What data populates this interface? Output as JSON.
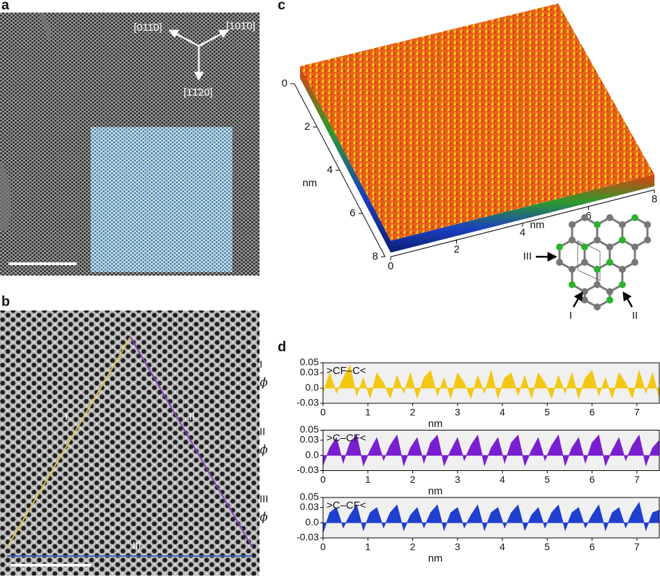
{
  "panels": {
    "a": {
      "label": "a",
      "directions": [
        "[011̄0]",
        "[101̄0]",
        "[1̄1̄20]"
      ]
    },
    "b": {
      "label": "b",
      "lines": [
        "I",
        "II",
        "III"
      ]
    },
    "c": {
      "label": "c",
      "depth_ticks": [
        0,
        2,
        4,
        6,
        8
      ],
      "depth_unit": "nm",
      "width_ticks": [
        0,
        2,
        4,
        6,
        8
      ],
      "width_unit": "nm",
      "sites": [
        "I",
        "II",
        "III"
      ]
    },
    "d": {
      "label": "d"
    }
  },
  "chart_data": [
    {
      "type": "area",
      "row_label": "I",
      "annotation": ">CF–C<",
      "ylabel": "ϕ",
      "xlabel": "nm",
      "color": "#f2c811",
      "x": [
        0,
        0.15,
        0.3,
        0.45,
        0.6,
        0.75,
        0.9,
        1.05,
        1.2,
        1.35,
        1.5,
        1.65,
        1.8,
        1.95,
        2.1,
        2.25,
        2.4,
        2.55,
        2.7,
        2.85,
        3,
        3.15,
        3.3,
        3.45,
        3.6,
        3.75,
        3.9,
        4.05,
        4.2,
        4.35,
        4.5,
        4.65,
        4.8,
        4.95,
        5.1,
        5.25,
        5.4,
        5.55,
        5.7,
        5.85,
        6,
        6.15,
        6.3,
        6.45,
        6.6,
        6.75,
        6.9,
        7.05,
        7.2,
        7.35,
        7.5
      ],
      "values": [
        -0.01,
        0.03,
        -0.01,
        0.02,
        0.045,
        -0.015,
        0.02,
        -0.02,
        0.03,
        0.01,
        -0.02,
        0.025,
        -0.01,
        0.03,
        -0.02,
        0.02,
        0.035,
        -0.015,
        0.02,
        -0.02,
        0.03,
        0.01,
        -0.02,
        0.025,
        -0.01,
        0.035,
        -0.02,
        0.02,
        0.03,
        -0.015,
        0.025,
        -0.02,
        0.03,
        0.01,
        -0.02,
        0.025,
        -0.01,
        0.03,
        -0.02,
        0.02,
        0.035,
        -0.015,
        0.02,
        -0.02,
        0.03,
        0.01,
        -0.02,
        0.035,
        -0.01,
        0.03,
        -0.02
      ],
      "xlim": [
        0,
        7.5
      ],
      "xticks": [
        0,
        1,
        2,
        3,
        4,
        5,
        6,
        7
      ],
      "ylim": [
        -0.03,
        0.05
      ],
      "yticks": [
        0.05,
        0.03,
        {
          "value": 0,
          "label": "0.0"
        },
        -0.03
      ]
    },
    {
      "type": "area",
      "row_label": "II",
      "annotation": ">C–CF<",
      "ylabel": "ϕ",
      "xlabel": "nm",
      "color": "#7a1fd0",
      "x": [
        0,
        0.15,
        0.3,
        0.45,
        0.6,
        0.75,
        0.9,
        1.05,
        1.2,
        1.35,
        1.5,
        1.65,
        1.8,
        1.95,
        2.1,
        2.25,
        2.4,
        2.55,
        2.7,
        2.85,
        3,
        3.15,
        3.3,
        3.45,
        3.6,
        3.75,
        3.9,
        4.05,
        4.2,
        4.35,
        4.5,
        4.65,
        4.8,
        4.95,
        5.1,
        5.25,
        5.4,
        5.55,
        5.7,
        5.85,
        6,
        6.15,
        6.3,
        6.45,
        6.6,
        6.75,
        6.9,
        7.05,
        7.2,
        7.35,
        7.5
      ],
      "values": [
        -0.02,
        0.015,
        0.035,
        -0.015,
        0.025,
        0.04,
        -0.02,
        0.01,
        0.035,
        -0.01,
        0.02,
        0.04,
        -0.02,
        0.015,
        0.035,
        -0.015,
        0.025,
        0.04,
        -0.02,
        0.01,
        0.035,
        -0.01,
        0.02,
        0.04,
        -0.02,
        0.015,
        0.035,
        -0.015,
        0.025,
        0.04,
        -0.02,
        0.01,
        0.035,
        -0.01,
        0.02,
        0.04,
        -0.02,
        0.015,
        0.035,
        -0.015,
        0.025,
        0.04,
        -0.02,
        0.01,
        0.035,
        -0.01,
        0.02,
        0.04,
        -0.02,
        0.015,
        0.03
      ],
      "xlim": [
        0,
        7.5
      ],
      "xticks": [
        0,
        1,
        2,
        3,
        4,
        5,
        6,
        7
      ],
      "ylim": [
        -0.03,
        0.05
      ],
      "yticks": [
        0.05,
        0.03,
        {
          "value": 0,
          "label": "0.0"
        },
        -0.03
      ]
    },
    {
      "type": "area",
      "row_label": "III",
      "annotation": ">C–CF<",
      "ylabel": "ϕ",
      "xlabel": "nm",
      "color": "#1f3fcf",
      "x": [
        0,
        0.15,
        0.3,
        0.45,
        0.6,
        0.75,
        0.9,
        1.05,
        1.2,
        1.35,
        1.5,
        1.65,
        1.8,
        1.95,
        2.1,
        2.25,
        2.4,
        2.55,
        2.7,
        2.85,
        3,
        3.15,
        3.3,
        3.45,
        3.6,
        3.75,
        3.9,
        4.05,
        4.2,
        4.35,
        4.5,
        4.65,
        4.8,
        4.95,
        5.1,
        5.25,
        5.4,
        5.55,
        5.7,
        5.85,
        6,
        6.15,
        6.3,
        6.45,
        6.6,
        6.75,
        6.9,
        7.05,
        7.2,
        7.35,
        7.5
      ],
      "values": [
        -0.02,
        0.02,
        0.03,
        -0.01,
        0.015,
        0.035,
        -0.015,
        0.02,
        0.03,
        -0.01,
        0.02,
        0.035,
        -0.015,
        0.015,
        0.03,
        -0.01,
        0.02,
        0.035,
        -0.015,
        0.02,
        0.03,
        -0.01,
        0.015,
        0.035,
        -0.015,
        0.02,
        0.03,
        -0.01,
        0.02,
        0.035,
        -0.015,
        0.015,
        0.03,
        -0.01,
        0.02,
        0.035,
        -0.015,
        0.02,
        0.03,
        -0.01,
        0.015,
        0.035,
        -0.015,
        0.02,
        0.03,
        -0.01,
        0.02,
        0.04,
        -0.015,
        0.02,
        0.025
      ],
      "xlim": [
        0,
        7.5
      ],
      "xticks": [
        0,
        1,
        2,
        3,
        4,
        5,
        6,
        7
      ],
      "ylim": [
        -0.03,
        0.05
      ],
      "yticks": [
        0.05,
        0.03,
        {
          "value": 0,
          "label": "0.0"
        },
        -0.03
      ]
    }
  ]
}
